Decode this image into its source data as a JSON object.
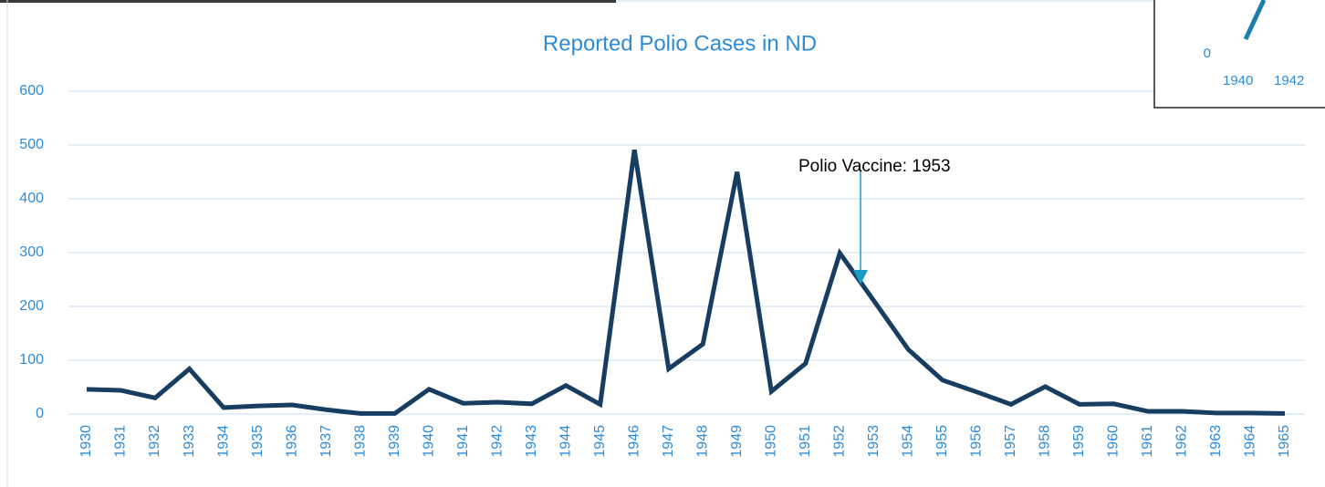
{
  "chart_data": {
    "type": "line",
    "title": "Reported Polio Cases in ND",
    "categories": [
      "1930",
      "1931",
      "1932",
      "1933",
      "1934",
      "1935",
      "1936",
      "1937",
      "1938",
      "1939",
      "1940",
      "1941",
      "1942",
      "1943",
      "1944",
      "1945",
      "1946",
      "1947",
      "1948",
      "1949",
      "1950",
      "1951",
      "1952",
      "1953",
      "1954",
      "1955",
      "1956",
      "1957",
      "1958",
      "1959",
      "1960",
      "1961",
      "1962",
      "1963",
      "1964",
      "1965"
    ],
    "series": [
      {
        "color": "#173e61",
        "values": [
          46,
          44,
          30,
          84,
          12,
          15,
          17,
          8,
          1,
          1,
          46,
          20,
          22,
          19,
          53,
          18,
          491,
          84,
          130,
          450,
          42,
          94,
          299,
          210,
          120,
          63,
          41,
          18,
          51,
          18,
          19,
          5,
          5,
          2,
          2,
          1
        ]
      }
    ],
    "ylim": [
      0,
      600
    ],
    "yticks": [
      0,
      100,
      200,
      300,
      400,
      500,
      600
    ],
    "grid": true,
    "annotations": [
      {
        "text": "Polio Vaccine: 1953"
      }
    ],
    "inset": {
      "yticks": [
        0
      ],
      "categories": [
        "1940",
        "1942"
      ]
    }
  }
}
